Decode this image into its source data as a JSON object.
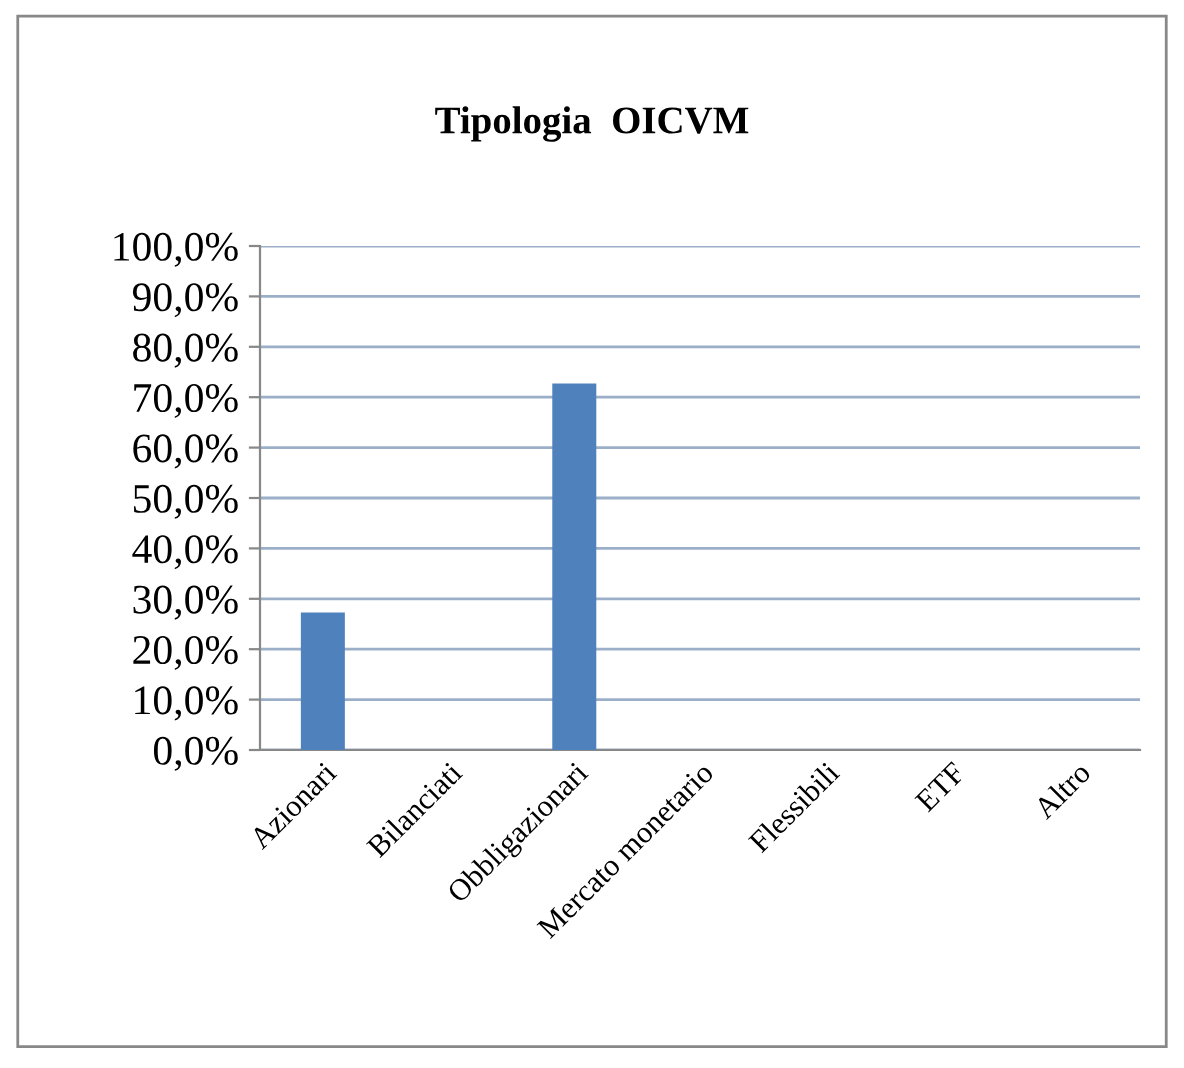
{
  "chart_data": {
    "type": "bar",
    "title": "Tipologia  OICVM",
    "categories": [
      "Azionari",
      "Bilanciati",
      "Obbligazionari",
      "Mercato monetario",
      "Flessibili",
      "ETF",
      "Altro"
    ],
    "values": [
      27.3,
      0,
      72.7,
      0,
      0,
      0,
      0
    ],
    "color": "#4f81bd",
    "ylim": [
      0,
      100
    ],
    "yticks": [
      {
        "value": 0,
        "label": "0,0%"
      },
      {
        "value": 10,
        "label": "10,0%"
      },
      {
        "value": 20,
        "label": "20,0%"
      },
      {
        "value": 30,
        "label": "30,0%"
      },
      {
        "value": 40,
        "label": "40,0%"
      },
      {
        "value": 50,
        "label": "50,0%"
      },
      {
        "value": 60,
        "label": "60,0%"
      },
      {
        "value": 70,
        "label": "70,0%"
      },
      {
        "value": 80,
        "label": "80,0%"
      },
      {
        "value": 90,
        "label": "90,0%"
      },
      {
        "value": 100,
        "label": "100,0%"
      }
    ],
    "grid": "y"
  }
}
